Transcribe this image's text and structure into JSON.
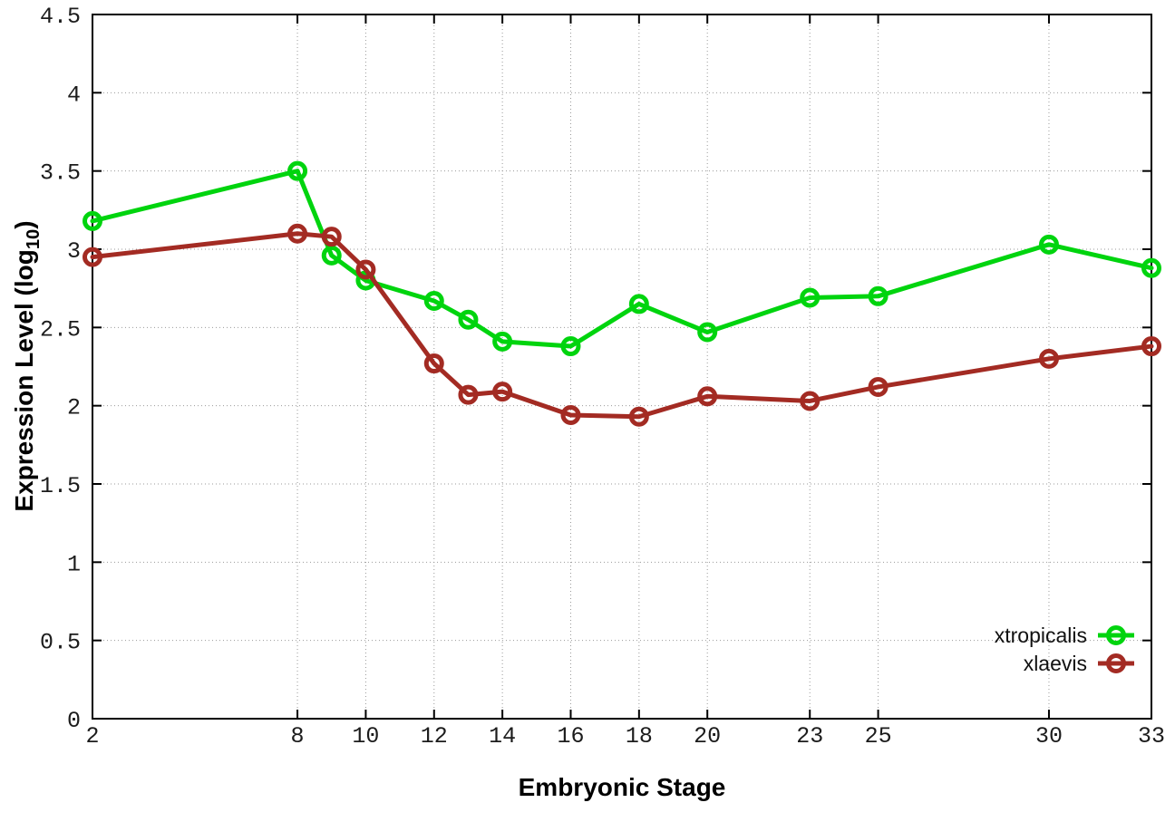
{
  "chart_data": {
    "type": "line",
    "title": "",
    "xlabel": "Embryonic Stage",
    "ylabel": {
      "pre": "Expression Level (log",
      "sub": "10",
      "post": ")"
    },
    "x": [
      2,
      8,
      9,
      10,
      12,
      13,
      14,
      16,
      18,
      20,
      23,
      25,
      30,
      33
    ],
    "xticks": [
      2,
      8,
      10,
      12,
      14,
      16,
      18,
      20,
      23,
      25,
      30,
      33
    ],
    "yticks": [
      0,
      0.5,
      1,
      1.5,
      2,
      2.5,
      3,
      3.5,
      4,
      4.5
    ],
    "xlim": [
      2,
      33
    ],
    "ylim": [
      0,
      4.5
    ],
    "grid": true,
    "legend_position": "bottom-right",
    "series": [
      {
        "name": "xtropicalis",
        "color": "#00d40e",
        "values": [
          3.18,
          3.5,
          2.96,
          2.8,
          2.67,
          2.55,
          2.41,
          2.38,
          2.65,
          2.47,
          2.69,
          2.7,
          3.03,
          2.88
        ]
      },
      {
        "name": "xlaevis",
        "color": "#a32b23",
        "values": [
          2.95,
          3.1,
          3.08,
          2.87,
          2.27,
          2.07,
          2.09,
          1.94,
          1.93,
          2.06,
          2.03,
          2.12,
          2.3,
          2.38
        ]
      }
    ],
    "style": {
      "grid_color": "#9a9a9a",
      "axis_color": "#000000",
      "line_width": 5,
      "marker_radius": 8.5,
      "marker_stroke": 5
    }
  }
}
